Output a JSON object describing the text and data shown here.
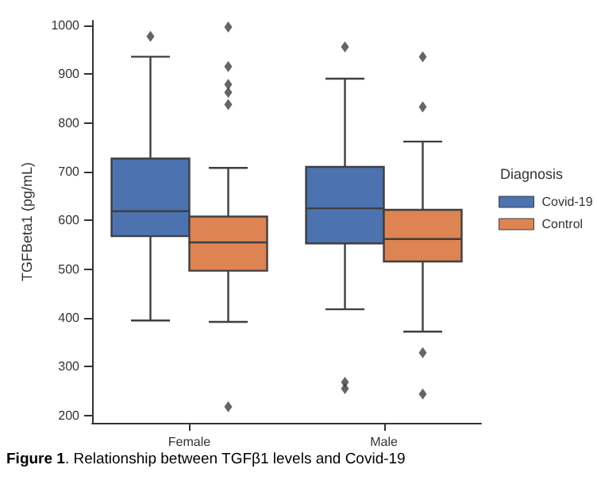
{
  "chart_data": {
    "type": "box",
    "ylabel": "TGFBeta1 (pg/mL)",
    "categories": [
      "Female",
      "Male"
    ],
    "ylim": [
      185,
      1010
    ],
    "yticks": [
      200,
      300,
      400,
      500,
      600,
      700,
      800,
      900,
      {
        "value": 1000,
        "label": "1000"
      }
    ],
    "grid": false,
    "legend": "right",
    "legend_title": "Diagnosis",
    "marker": "diamond",
    "series": [
      {
        "name": "Covid-19",
        "color": "#4c72b0",
        "boxes": [
          {
            "low": 395,
            "q1": 568,
            "median": 619,
            "q3": 727,
            "high": 936,
            "outliers": [
              978
            ]
          },
          {
            "low": 418,
            "q1": 553,
            "median": 625,
            "q3": 710,
            "high": 891,
            "outliers": [
              956,
              268,
              255
            ]
          }
        ]
      },
      {
        "name": "Control",
        "color": "#dd8452",
        "boxes": [
          {
            "low": 392,
            "q1": 497,
            "median": 555,
            "q3": 608,
            "high": 708,
            "outliers": [
              997,
              916,
              879,
              863,
              838,
              218
            ]
          },
          {
            "low": 372,
            "q1": 516,
            "median": 562,
            "q3": 622,
            "high": 762,
            "outliers": [
              936,
              833,
              329,
              244
            ]
          }
        ]
      }
    ],
    "annotations": [
      "Figure 1. Relationship between TGFβ1 levels and Covid-19"
    ]
  }
}
